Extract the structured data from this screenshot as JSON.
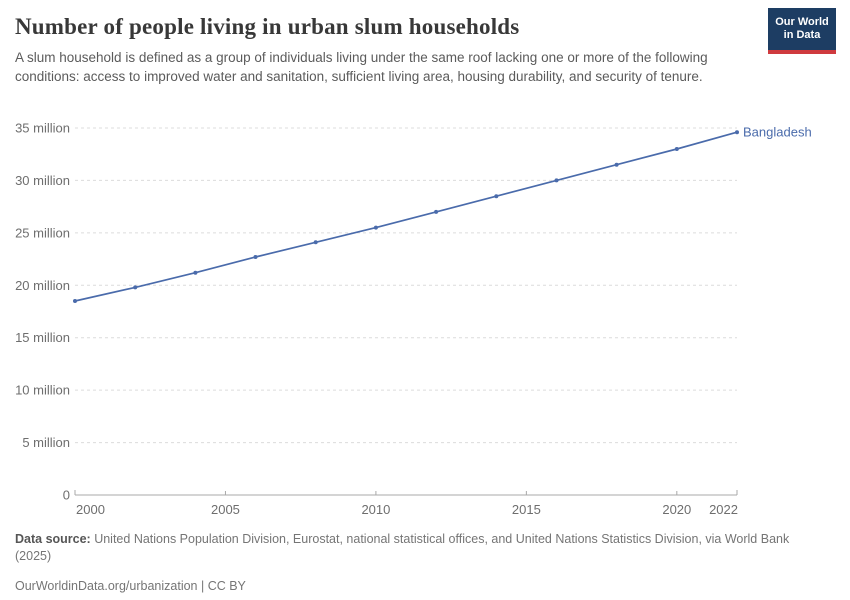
{
  "header": {
    "title": "Number of people living in urban slum households",
    "subtitle": "A slum household is defined as a group of individuals living under the same roof lacking one or more of the following conditions: access to improved water and sanitation, sufficient living area, housing durability, and security of tenure.",
    "logo": {
      "line1": "Our World",
      "line2": "in Data"
    }
  },
  "chart_data": {
    "type": "line",
    "title": "Number of people living in urban slum households",
    "x": [
      2000,
      2002,
      2004,
      2006,
      2008,
      2010,
      2012,
      2014,
      2016,
      2018,
      2020,
      2022
    ],
    "series": [
      {
        "name": "Bangladesh",
        "values": [
          18.5,
          19.8,
          21.2,
          22.7,
          24.1,
          25.5,
          27.0,
          28.5,
          30.0,
          31.5,
          33.0,
          34.6
        ],
        "color": "#4a6bab"
      }
    ],
    "unit": "million people",
    "xlim": [
      2000,
      2022
    ],
    "ylim": [
      0,
      35
    ],
    "yticks": [
      0,
      5,
      10,
      15,
      20,
      25,
      30,
      35
    ],
    "ytick_labels": [
      "0",
      "5 million",
      "10 million",
      "15 million",
      "20 million",
      "25 million",
      "30 million",
      "35 million"
    ],
    "xticks": [
      2000,
      2005,
      2010,
      2015,
      2020,
      2022
    ],
    "grid": "horizontal-dashed",
    "legend_position": "end-of-line-label",
    "entity_label": "Bangladesh"
  },
  "footer": {
    "source_label": "Data source:",
    "source_text": " United Nations Population Division, Eurostat, national statistical offices, and United Nations Statistics Division, via World Bank",
    "source_text2": "(2025)",
    "citation": "OurWorldinData.org/urbanization | CC BY"
  },
  "colors": {
    "line": "#4a6bab",
    "grid": "#dcdcdc",
    "axis": "#a8a8a8",
    "tick_text": "#6e6e6e",
    "logo_bg": "#1d3d63",
    "logo_stripe": "#cf3a3e"
  }
}
